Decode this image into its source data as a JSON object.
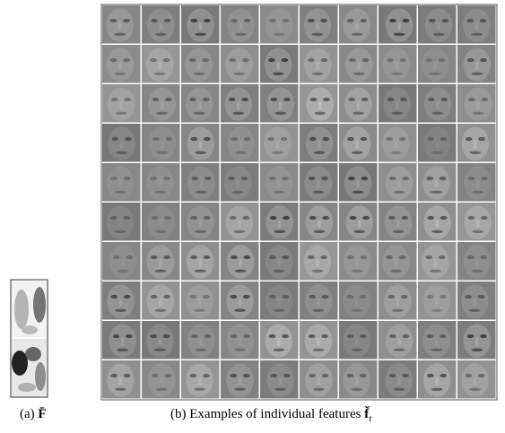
{
  "caption_a": {
    "label": "(a)",
    "symbol": "F̄"
  },
  "caption_b": {
    "label": "(b)",
    "text": "Examples of individual features",
    "symbol": "f̆",
    "subscript": "t"
  }
}
